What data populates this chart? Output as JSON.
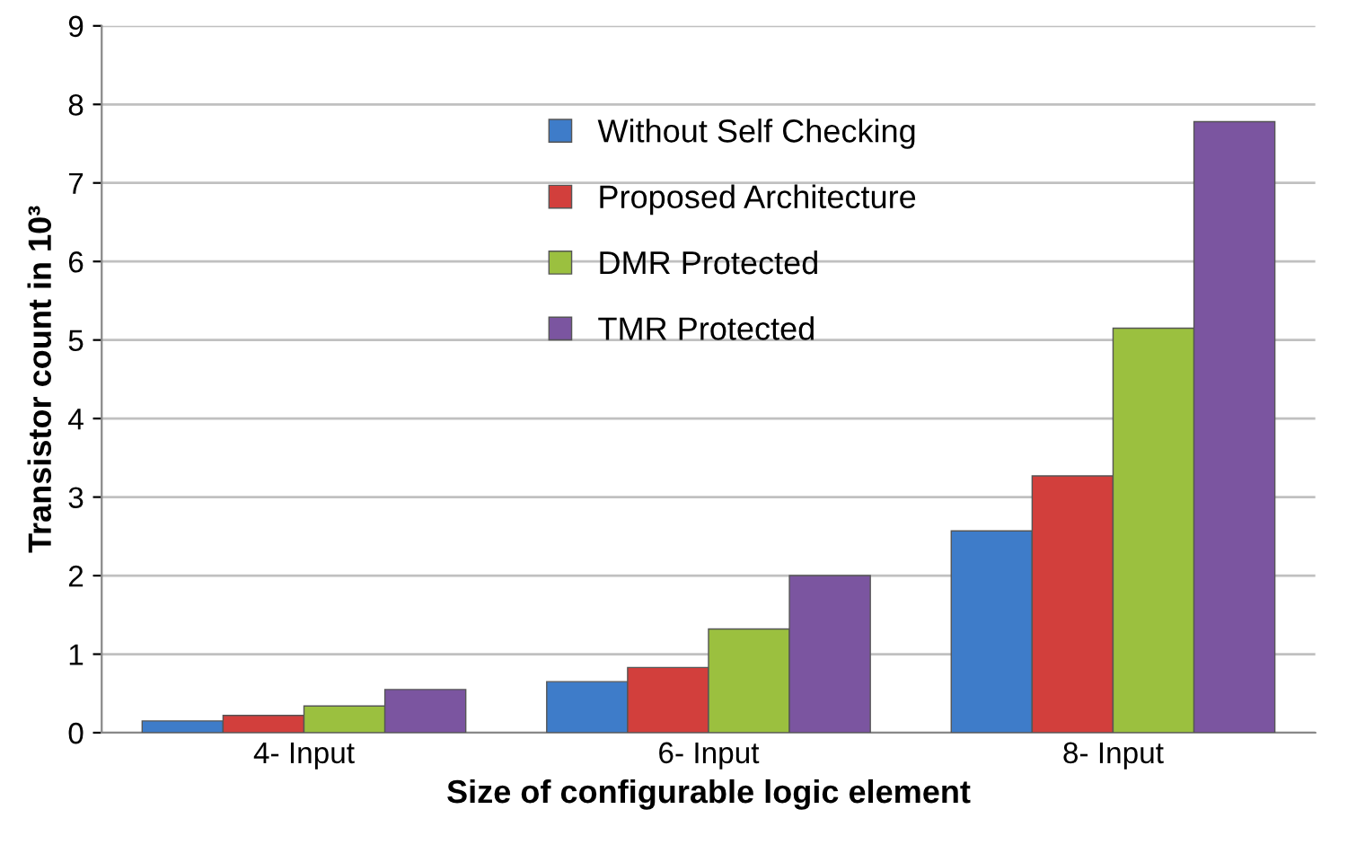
{
  "chart_data": {
    "type": "bar",
    "xlabel": "Size of configurable logic element",
    "ylabel": "Transistor count in 10³",
    "categories": [
      "4- Input",
      "6- Input",
      "8- Input"
    ],
    "series": [
      {
        "name": "Without Self Checking",
        "color": "#3e7cc9",
        "values": [
          0.15,
          0.65,
          2.57
        ]
      },
      {
        "name": "Proposed Architecture",
        "color": "#d23f3c",
        "values": [
          0.22,
          0.83,
          3.27
        ]
      },
      {
        "name": "DMR Protected",
        "color": "#9bc03f",
        "values": [
          0.34,
          1.32,
          5.15
        ]
      },
      {
        "name": "TMR Protected",
        "color": "#7b55a0",
        "values": [
          0.55,
          2.0,
          7.78
        ]
      }
    ],
    "ylim": [
      0,
      9
    ],
    "yticks": [
      0,
      1,
      2,
      3,
      4,
      5,
      6,
      7,
      8,
      9
    ],
    "grid": "y",
    "legend": "top"
  }
}
